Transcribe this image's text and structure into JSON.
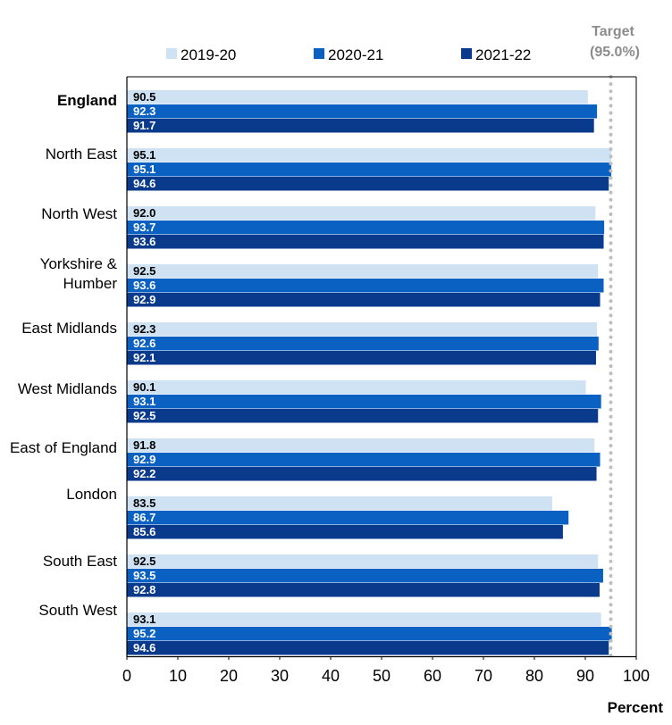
{
  "chart_data": {
    "type": "bar",
    "orientation": "horizontal",
    "categories": [
      "England",
      "North East",
      "North West",
      "Yorkshire & Humber",
      "East Midlands",
      "West Midlands",
      "East of England",
      "London",
      "South East",
      "South West"
    ],
    "series": [
      {
        "name": "2019-20",
        "color": "#cfe2f3",
        "label_color": "#000000",
        "values": [
          90.5,
          95.1,
          92.0,
          92.5,
          92.3,
          90.1,
          91.8,
          83.5,
          92.5,
          93.1
        ]
      },
      {
        "name": "2020-21",
        "color": "#0b61c2",
        "label_color": "#ffffff",
        "values": [
          92.3,
          95.1,
          93.7,
          93.6,
          92.6,
          93.1,
          92.9,
          86.7,
          93.5,
          95.2
        ]
      },
      {
        "name": "2021-22",
        "color": "#0a3a8c",
        "label_color": "#ffffff",
        "values": [
          91.7,
          94.6,
          93.6,
          92.9,
          92.1,
          92.5,
          92.2,
          85.6,
          92.8,
          94.6
        ]
      }
    ],
    "value_labels": [
      [
        "90.5",
        "95.1",
        "92.0",
        "92.5",
        "92.3",
        "90.1",
        "91.8",
        "83.5",
        "92.5",
        "93.1"
      ],
      [
        "92.3",
        "95.1",
        "93.7",
        "93.6",
        "92.6",
        "93.1",
        "92.9",
        "86.7",
        "93.5",
        "95.2"
      ],
      [
        "91.7",
        "94.6",
        "93.6",
        "92.9",
        "92.1",
        "92.5",
        "92.2",
        "85.6",
        "92.8",
        "94.6"
      ]
    ],
    "xlabel": "Percent",
    "xlim": [
      0,
      100
    ],
    "xticks": [
      "0",
      "10",
      "20",
      "30",
      "40",
      "50",
      "60",
      "70",
      "80",
      "90",
      "100"
    ],
    "target": {
      "value": 95.0,
      "label_line1": "Target",
      "label_line2": "(95.0%)",
      "color": "#bfbfbf"
    },
    "grid": false,
    "legend_position": "top"
  }
}
